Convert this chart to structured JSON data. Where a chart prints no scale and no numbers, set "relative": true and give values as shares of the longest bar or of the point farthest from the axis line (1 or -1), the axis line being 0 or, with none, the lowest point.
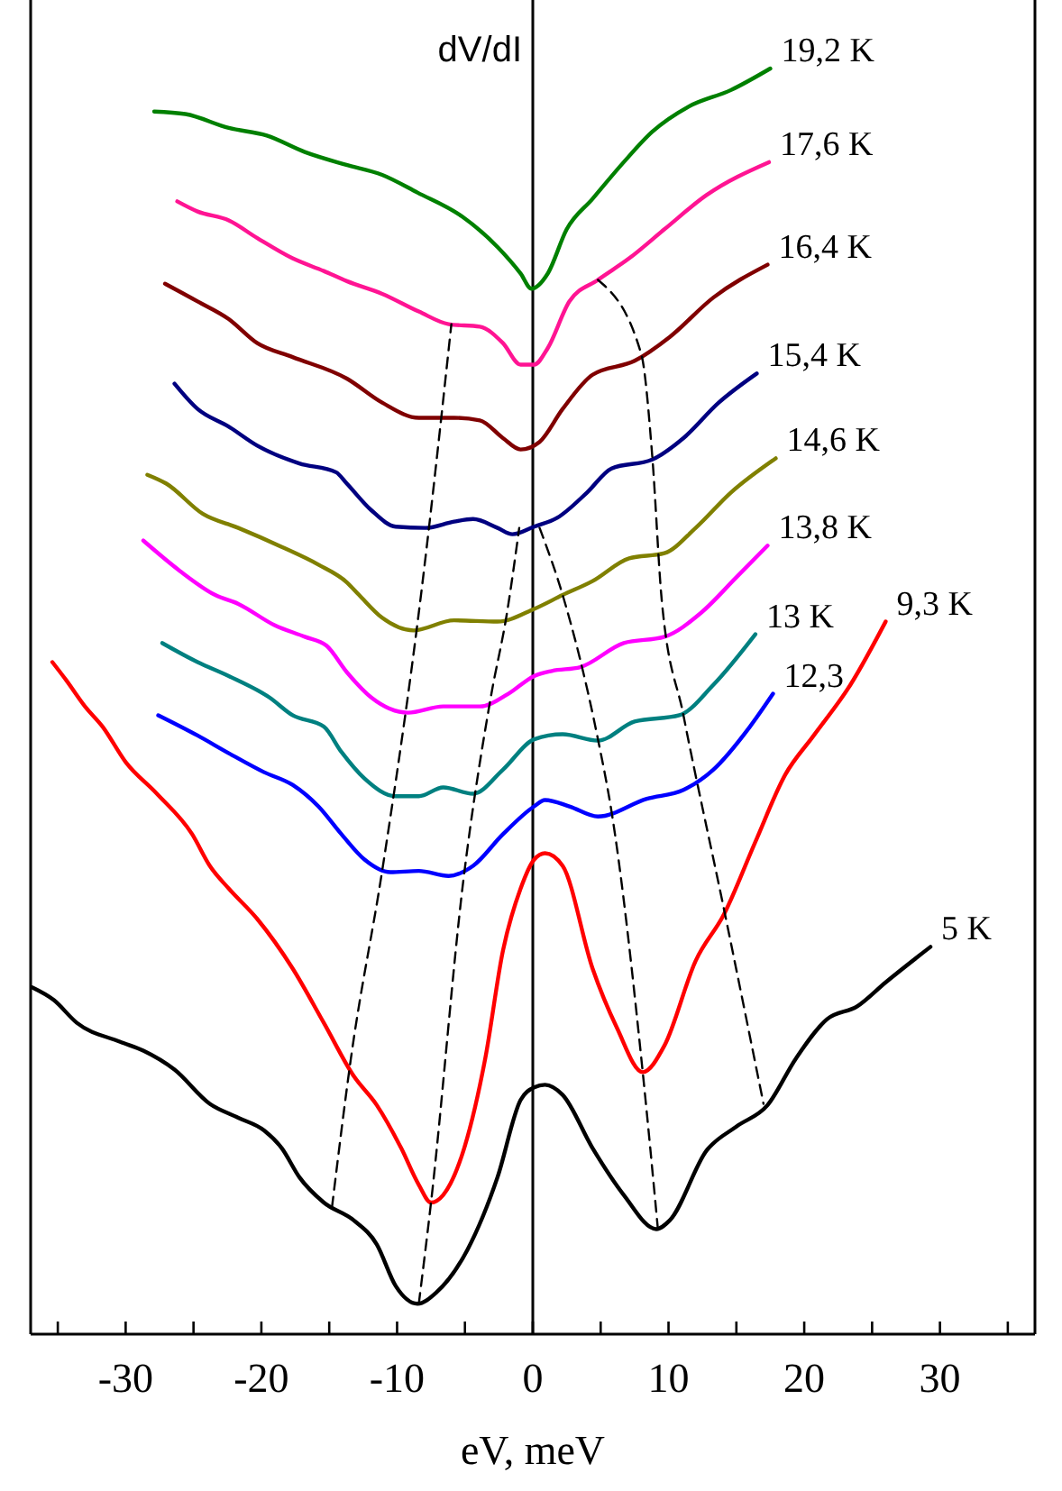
{
  "chart_data": {
    "type": "line",
    "relative": true,
    "xlabel": "eV, meV",
    "ylabel": "dV/dI",
    "xlim": [
      -37,
      37
    ],
    "xticks": [
      {
        "value": -35,
        "label": null
      },
      -30,
      {
        "value": -25,
        "label": null
      },
      -20,
      {
        "value": -15,
        "label": null
      },
      -10,
      {
        "value": -5,
        "label": null
      },
      0,
      {
        "value": 5,
        "label": null
      },
      10,
      {
        "value": 15,
        "label": null
      },
      20,
      {
        "value": 25,
        "label": null
      },
      30,
      {
        "value": 35,
        "label": null
      }
    ],
    "ref_lines": [
      {
        "axis": "x",
        "value": 0,
        "color": "#000000"
      }
    ],
    "series": [
      {
        "name": "19,2 K",
        "color": "#008000",
        "x": [
          -27.9,
          -25.6,
          -22.4,
          -19.6,
          -16.8,
          -13.8,
          -11.1,
          -8.5,
          -5.2,
          -2.6,
          -0.9,
          -0.1,
          1.1,
          2.5,
          4.4,
          6.7,
          8.8,
          11.5,
          14.6,
          17.5
        ],
        "values": [
          0.966,
          0.964,
          0.953,
          0.947,
          0.934,
          0.924,
          0.916,
          0.902,
          0.883,
          0.859,
          0.838,
          0.826,
          0.838,
          0.873,
          0.897,
          0.926,
          0.95,
          0.97,
          0.983,
          1.0
        ]
      },
      {
        "name": "17,6 K",
        "color": "#ff1493",
        "x": [
          -26.2,
          -24.7,
          -22.4,
          -20.3,
          -17.7,
          -15.4,
          -13.7,
          -11.1,
          -8.4,
          -6.2,
          -3.9,
          -2.2,
          -0.9,
          0.1,
          1.1,
          2.7,
          4.8,
          7.1,
          9.7,
          12.8,
          17.4
        ],
        "values": [
          0.895,
          0.887,
          0.88,
          0.866,
          0.85,
          0.84,
          0.832,
          0.822,
          0.808,
          0.798,
          0.796,
          0.783,
          0.766,
          0.766,
          0.779,
          0.816,
          0.833,
          0.85,
          0.873,
          0.9,
          0.926
        ]
      },
      {
        "name": "16,4 K",
        "color": "#800000",
        "x": [
          -27.1,
          -24.7,
          -22.4,
          -20.3,
          -17.7,
          -13.7,
          -11.1,
          -8.4,
          -5.8,
          -3.9,
          -2.2,
          -0.9,
          0.5,
          2.2,
          4.4,
          7.5,
          10.1,
          13.3,
          17.3
        ],
        "values": [
          0.83,
          0.816,
          0.802,
          0.783,
          0.772,
          0.755,
          0.736,
          0.724,
          0.724,
          0.722,
          0.708,
          0.699,
          0.705,
          0.731,
          0.758,
          0.769,
          0.788,
          0.819,
          0.845
        ]
      },
      {
        "name": "15,4 K",
        "color": "#000080",
        "x": [
          -26.4,
          -24.7,
          -22.4,
          -20.3,
          -17.2,
          -14.5,
          -13.7,
          -11.9,
          -10.1,
          -7.9,
          -5.8,
          -4.4,
          -2.6,
          -1.5,
          0.1,
          1.8,
          4.0,
          5.8,
          8.8,
          11.1,
          13.7,
          16.5
        ],
        "values": [
          0.751,
          0.731,
          0.717,
          0.702,
          0.688,
          0.681,
          0.672,
          0.651,
          0.638,
          0.637,
          0.642,
          0.644,
          0.637,
          0.632,
          0.638,
          0.645,
          0.665,
          0.684,
          0.691,
          0.708,
          0.736,
          0.759
        ]
      },
      {
        "name": "14,6 K",
        "color": "#808000",
        "x": [
          -28.4,
          -27.0,
          -24.3,
          -21.7,
          -18.5,
          -15.8,
          -13.7,
          -12.8,
          -11.1,
          -8.8,
          -5.8,
          -2.6,
          0.1,
          2.2,
          4.4,
          7.1,
          9.7,
          12.0,
          14.6,
          17.9
        ],
        "values": [
          0.679,
          0.672,
          0.648,
          0.637,
          0.622,
          0.608,
          0.594,
          0.584,
          0.566,
          0.556,
          0.564,
          0.563,
          0.573,
          0.584,
          0.595,
          0.613,
          0.617,
          0.637,
          0.665,
          0.692
        ]
      },
      {
        "name": "13,8 K",
        "color": "#ff00ff",
        "x": [
          -28.7,
          -26.0,
          -23.4,
          -21.7,
          -19.0,
          -16.8,
          -15.2,
          -13.7,
          -11.9,
          -9.2,
          -6.6,
          -3.9,
          -1.8,
          0.1,
          1.4,
          3.5,
          6.7,
          9.7,
          12.4,
          15.0,
          17.3
        ],
        "values": [
          0.627,
          0.603,
          0.584,
          0.577,
          0.56,
          0.551,
          0.544,
          0.523,
          0.503,
          0.491,
          0.496,
          0.496,
          0.506,
          0.52,
          0.524,
          0.527,
          0.546,
          0.551,
          0.57,
          0.598,
          0.623
        ]
      },
      {
        "name": "13 K",
        "color": "#008080",
        "x": [
          -27.3,
          -24.7,
          -22.4,
          -19.4,
          -17.7,
          -15.4,
          -14.1,
          -12.4,
          -10.1,
          -8.4,
          -6.6,
          -4.4,
          -2.2,
          0.1,
          2.2,
          4.8,
          7.5,
          10.8,
          13.3,
          16.4
        ],
        "values": [
          0.546,
          0.531,
          0.52,
          0.503,
          0.489,
          0.48,
          0.46,
          0.439,
          0.425,
          0.425,
          0.432,
          0.427,
          0.446,
          0.47,
          0.474,
          0.469,
          0.484,
          0.489,
          0.513,
          0.553
        ]
      },
      {
        "name": "12,3",
        "color": "#0000ff",
        "x": [
          -27.6,
          -24.7,
          -22.4,
          -19.8,
          -17.7,
          -15.8,
          -14.1,
          -12.4,
          -10.5,
          -8.4,
          -6.2,
          -4.4,
          -2.2,
          0.1,
          0.9,
          2.7,
          4.8,
          8.4,
          11.1,
          13.3,
          16.0,
          17.7
        ],
        "values": [
          0.489,
          0.473,
          0.459,
          0.444,
          0.434,
          0.417,
          0.395,
          0.375,
          0.365,
          0.366,
          0.362,
          0.37,
          0.395,
          0.417,
          0.422,
          0.417,
          0.409,
          0.423,
          0.43,
          0.446,
          0.48,
          0.506
        ]
      },
      {
        "name": "9,3 K",
        "color": "#ff0000",
        "x": [
          -35.4,
          -34.4,
          -33.0,
          -31.7,
          -30.0,
          -27.7,
          -25.1,
          -23.8,
          -22.4,
          -20.3,
          -17.7,
          -15.4,
          -13.2,
          -11.5,
          -9.7,
          -8.4,
          -7.5,
          -6.6,
          -5.2,
          -3.5,
          -2.2,
          -0.9,
          0.1,
          0.9,
          2.2,
          4.4,
          6.2,
          8.1,
          9.7,
          12.0,
          14.1,
          16.4,
          18.6,
          20.7,
          23.4,
          26.0
        ],
        "values": [
          0.531,
          0.517,
          0.496,
          0.48,
          0.452,
          0.427,
          0.395,
          0.37,
          0.352,
          0.328,
          0.289,
          0.246,
          0.204,
          0.181,
          0.147,
          0.118,
          0.104,
          0.11,
          0.142,
          0.218,
          0.303,
          0.352,
          0.375,
          0.38,
          0.37,
          0.289,
          0.242,
          0.207,
          0.228,
          0.295,
          0.332,
          0.389,
          0.442,
          0.473,
          0.513,
          0.563
        ]
      },
      {
        "name": "5 K",
        "color": "#000000",
        "x": [
          -36.9,
          -35.3,
          -33.6,
          -30.4,
          -28.7,
          -26.4,
          -23.8,
          -21.7,
          -19.8,
          -18.5,
          -17.2,
          -15.4,
          -13.2,
          -11.5,
          -10.1,
          -8.5,
          -7.1,
          -4.8,
          -2.6,
          -0.9,
          0.1,
          0.9,
          2.2,
          4.4,
          6.7,
          9.1,
          10.1,
          12.8,
          15.0,
          17.3,
          19.4,
          21.7,
          23.9,
          26.0,
          29.3
        ],
        "values": [
          0.274,
          0.264,
          0.246,
          0.231,
          0.224,
          0.209,
          0.182,
          0.171,
          0.161,
          0.147,
          0.124,
          0.104,
          0.09,
          0.071,
          0.038,
          0.024,
          0.033,
          0.067,
          0.124,
          0.185,
          0.195,
          0.197,
          0.189,
          0.147,
          0.11,
          0.083,
          0.09,
          0.145,
          0.164,
          0.181,
          0.218,
          0.249,
          0.259,
          0.278,
          0.306
        ]
      },
      {
        "color": "#000000",
        "line_style": "dashed",
        "x": [
          -6.0,
          -8.4,
          -11.1,
          -13.4,
          -14.8
        ],
        "values": [
          0.798,
          0.57,
          0.366,
          0.218,
          0.1
        ]
      },
      {
        "color": "#000000",
        "line_style": "dashed",
        "x": [
          -1.0,
          -1.9,
          -3.1,
          -5.1,
          -7.5,
          -8.4
        ],
        "values": [
          0.637,
          0.57,
          0.503,
          0.36,
          0.104,
          0.024
        ]
      },
      {
        "color": "#000000",
        "line_style": "dashed",
        "x": [
          4.8,
          8.0,
          8.8,
          9.5,
          11.1,
          14.1,
          17.0
        ],
        "values": [
          0.833,
          0.774,
          0.694,
          0.58,
          0.489,
          0.335,
          0.182
        ]
      },
      {
        "color": "#000000",
        "line_style": "dashed",
        "x": [
          0.5,
          2.2,
          4.8,
          5.8,
          8.1,
          9.2
        ],
        "values": [
          0.637,
          0.584,
          0.47,
          0.413,
          0.207,
          0.085
        ]
      }
    ]
  }
}
